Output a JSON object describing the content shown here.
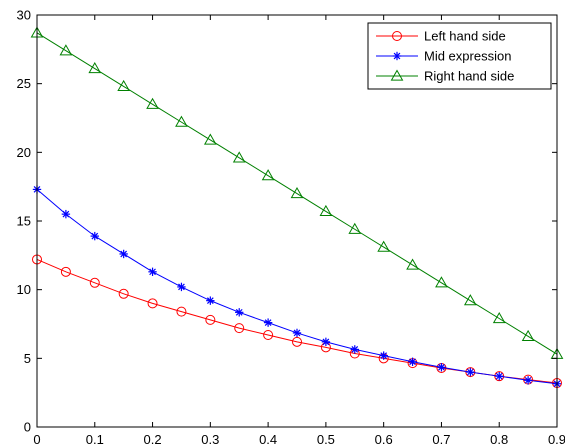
{
  "chart_data": {
    "type": "line",
    "title": "",
    "xlabel": "",
    "ylabel": "",
    "xlim": [
      0,
      0.9
    ],
    "ylim": [
      0,
      30
    ],
    "xticks": [
      "0",
      "0.1",
      "0.2",
      "0.3",
      "0.4",
      "0.5",
      "0.6",
      "0.7",
      "0.8",
      "0.9"
    ],
    "yticks": [
      "0",
      "5",
      "10",
      "15",
      "20",
      "25",
      "30"
    ],
    "grid": false,
    "legend_position": "top-right",
    "x": [
      0,
      0.05,
      0.1,
      0.15,
      0.2,
      0.25,
      0.3,
      0.35,
      0.4,
      0.45,
      0.5,
      0.55,
      0.6,
      0.65,
      0.7,
      0.75,
      0.8,
      0.85,
      0.9
    ],
    "series": [
      {
        "name": "Left hand side",
        "color": "#ff0000",
        "marker": "circle",
        "values": [
          12.2,
          11.3,
          10.5,
          9.7,
          9.0,
          8.4,
          7.8,
          7.2,
          6.7,
          6.2,
          5.8,
          5.35,
          5.0,
          4.65,
          4.3,
          4.0,
          3.7,
          3.45,
          3.2
        ]
      },
      {
        "name": "Mid expression",
        "color": "#0000ff",
        "marker": "asterisk",
        "values": [
          17.3,
          15.5,
          13.9,
          12.6,
          11.3,
          10.2,
          9.2,
          8.35,
          7.6,
          6.85,
          6.2,
          5.65,
          5.2,
          4.75,
          4.35,
          4.0,
          3.7,
          3.4,
          3.15
        ]
      },
      {
        "name": "Right hand side",
        "color": "#008000",
        "marker": "triangle",
        "values": [
          28.7,
          27.4,
          26.1,
          24.8,
          23.5,
          22.2,
          20.9,
          19.6,
          18.3,
          17.0,
          15.7,
          14.4,
          13.1,
          11.8,
          10.5,
          9.2,
          7.9,
          6.6,
          5.3
        ]
      }
    ]
  }
}
